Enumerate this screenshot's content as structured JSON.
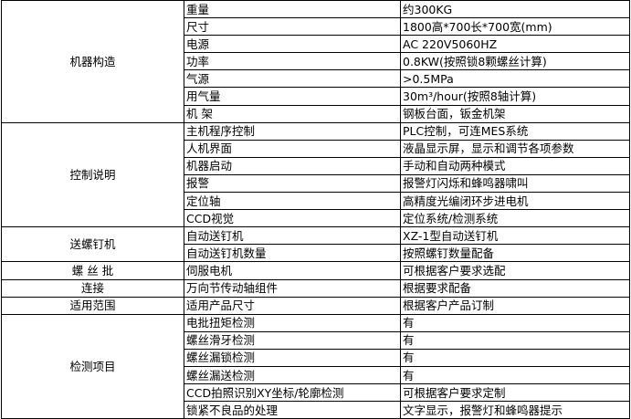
{
  "sections": [
    {
      "category": "机器构造",
      "rows": [
        [
          "重量",
          "约300KG"
        ],
        [
          "尺寸",
          "1800高*700长*700宽(mm)"
        ],
        [
          "电源",
          "AC 220V5060HZ"
        ],
        [
          "功率",
          "0.8KW(按照锁8颗螺丝计算)"
        ],
        [
          "气源",
          ">0.5MPa"
        ],
        [
          "用气量",
          "30m³/hour(按照8轴计算)"
        ],
        [
          "机 架",
          "钢板台面，钣金机架"
        ]
      ]
    },
    {
      "category": "控制说明",
      "rows": [
        [
          "主机程序控制",
          "PLC控制，可连MES系统"
        ],
        [
          "人机界面",
          "液晶显示屏，显示和调节各项参数"
        ],
        [
          "机器启动",
          "手动和自动两种模式"
        ],
        [
          "报警",
          "报警灯闪烁和蜂鸣器啸叫"
        ],
        [
          "定位轴",
          "高精度光编闭环步进电机"
        ],
        [
          "CCD视觉",
          "定位系统/检测系统"
        ]
      ]
    },
    {
      "category": "送螺钉机",
      "rows": [
        [
          "自动送钉机",
          "XZ-1型自动送钉机"
        ],
        [
          "自动送钉机数量",
          "按照螺钉数量配备"
        ]
      ]
    },
    {
      "category": "螺 丝 批",
      "rows": [
        [
          "伺服电机",
          "可根据客户要求选配"
        ]
      ]
    },
    {
      "category": "连接",
      "rows": [
        [
          "万向节传动轴组件",
          "根据要求配备"
        ]
      ]
    },
    {
      "category": "适用范围",
      "rows": [
        [
          "适用产品尺寸",
          "根据客户产品订制"
        ]
      ]
    },
    {
      "category": "检测项目",
      "rows": [
        [
          "电批扭矩检测",
          "有"
        ],
        [
          "螺丝滑牙检测",
          "有"
        ],
        [
          "螺丝漏锁检测",
          "有"
        ],
        [
          "螺丝漏送检测",
          "有"
        ],
        [
          "CCD拍照识别XY坐标/轮廓检测",
          "可根据客户要求定制"
        ],
        [
          "锁紧不良品的处理",
          "文字显示，报警灯和蜂鸣器提示"
        ]
      ]
    }
  ]
}
